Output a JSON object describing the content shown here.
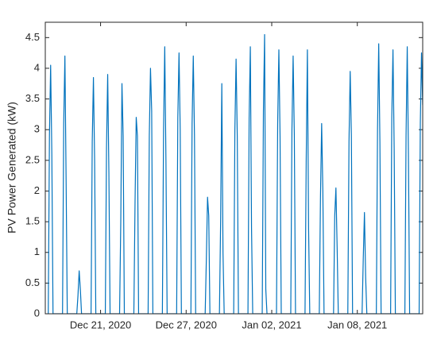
{
  "chart_data": {
    "type": "line",
    "y_label": "PV Power Generated (kW)",
    "x": [
      "2020-12-17 08:00",
      "2020-12-17 10:00",
      "2020-12-17 12:00",
      "2020-12-17 14:00",
      "2020-12-17 16:00",
      "2020-12-18 08:00",
      "2020-12-18 10:00",
      "2020-12-18 12:00",
      "2020-12-18 14:00",
      "2020-12-18 16:00",
      "2020-12-19 08:00",
      "2020-12-19 10:00",
      "2020-12-19 12:00",
      "2020-12-19 14:00",
      "2020-12-19 16:00",
      "2020-12-20 08:00",
      "2020-12-20 10:00",
      "2020-12-20 12:00",
      "2020-12-20 14:00",
      "2020-12-20 16:00",
      "2020-12-21 08:00",
      "2020-12-21 10:00",
      "2020-12-21 12:00",
      "2020-12-21 14:00",
      "2020-12-21 16:00",
      "2020-12-22 08:00",
      "2020-12-22 10:00",
      "2020-12-22 12:00",
      "2020-12-22 14:00",
      "2020-12-22 16:00",
      "2020-12-23 08:00",
      "2020-12-23 10:00",
      "2020-12-23 12:00",
      "2020-12-23 14:00",
      "2020-12-23 16:00",
      "2020-12-24 08:00",
      "2020-12-24 10:00",
      "2020-12-24 12:00",
      "2020-12-24 14:00",
      "2020-12-24 16:00",
      "2020-12-25 08:00",
      "2020-12-25 10:00",
      "2020-12-25 12:00",
      "2020-12-25 14:00",
      "2020-12-25 16:00",
      "2020-12-26 08:00",
      "2020-12-26 10:00",
      "2020-12-26 12:00",
      "2020-12-26 14:00",
      "2020-12-26 16:00",
      "2020-12-27 08:00",
      "2020-12-27 10:00",
      "2020-12-27 12:00",
      "2020-12-27 14:00",
      "2020-12-27 16:00",
      "2020-12-28 08:00",
      "2020-12-28 10:00",
      "2020-12-28 12:00",
      "2020-12-28 14:00",
      "2020-12-28 16:00",
      "2020-12-29 08:00",
      "2020-12-29 10:00",
      "2020-12-29 12:00",
      "2020-12-29 14:00",
      "2020-12-29 16:00",
      "2020-12-30 08:00",
      "2020-12-30 10:00",
      "2020-12-30 12:00",
      "2020-12-30 14:00",
      "2020-12-30 16:00",
      "2020-12-31 08:00",
      "2020-12-31 10:00",
      "2020-12-31 12:00",
      "2020-12-31 14:00",
      "2020-12-31 16:00",
      "2021-01-01 08:00",
      "2021-01-01 10:00",
      "2021-01-01 12:00",
      "2021-01-01 14:00",
      "2021-01-01 16:00",
      "2021-01-02 08:00",
      "2021-01-02 10:00",
      "2021-01-02 12:00",
      "2021-01-02 14:00",
      "2021-01-02 16:00",
      "2021-01-03 08:00",
      "2021-01-03 10:00",
      "2021-01-03 12:00",
      "2021-01-03 14:00",
      "2021-01-03 16:00",
      "2021-01-04 08:00",
      "2021-01-04 10:00",
      "2021-01-04 12:00",
      "2021-01-04 14:00",
      "2021-01-04 16:00",
      "2021-01-05 08:00",
      "2021-01-05 10:00",
      "2021-01-05 12:00",
      "2021-01-05 14:00",
      "2021-01-05 16:00",
      "2021-01-06 08:00",
      "2021-01-06 10:00",
      "2021-01-06 12:00",
      "2021-01-06 14:00",
      "2021-01-06 16:00",
      "2021-01-07 08:00",
      "2021-01-07 10:00",
      "2021-01-07 12:00",
      "2021-01-07 14:00",
      "2021-01-07 16:00",
      "2021-01-08 08:00",
      "2021-01-08 10:00",
      "2021-01-08 12:00",
      "2021-01-08 14:00",
      "2021-01-08 16:00",
      "2021-01-09 08:00",
      "2021-01-09 10:00",
      "2021-01-09 12:00",
      "2021-01-09 14:00",
      "2021-01-09 16:00",
      "2021-01-10 08:00",
      "2021-01-10 10:00",
      "2021-01-10 12:00",
      "2021-01-10 14:00",
      "2021-01-10 16:00",
      "2021-01-11 08:00",
      "2021-01-11 10:00",
      "2021-01-11 12:00",
      "2021-01-11 14:00",
      "2021-01-11 16:00",
      "2021-01-12 08:00",
      "2021-01-12 10:00",
      "2021-01-12 12:00",
      "2021-01-12 14:00"
    ],
    "series": [
      {
        "color": "#0072bd",
        "values": [
          0,
          2.9,
          4.05,
          2.6,
          0,
          0,
          3.1,
          4.2,
          2.2,
          0,
          0,
          0.3,
          0.7,
          0.4,
          0,
          0,
          2.8,
          3.85,
          2.5,
          0,
          0,
          2.7,
          3.9,
          2.3,
          0,
          0,
          1.5,
          3.75,
          2.9,
          0,
          0,
          1.8,
          3.2,
          2.9,
          0,
          0,
          2.9,
          4.0,
          3.3,
          0,
          0,
          3.0,
          4.35,
          2.5,
          0,
          0,
          3.2,
          4.25,
          3.0,
          0,
          0,
          3.1,
          4.2,
          2.9,
          0,
          0,
          0.9,
          1.9,
          1.6,
          0,
          0,
          1.5,
          3.75,
          1.0,
          0,
          0,
          3.0,
          4.15,
          2.9,
          0,
          0,
          3.2,
          4.35,
          1.4,
          0,
          0,
          3.3,
          4.55,
          0.4,
          0,
          0,
          3.1,
          4.3,
          2.9,
          0,
          0,
          3.0,
          4.2,
          2.9,
          0,
          0,
          2.5,
          4.3,
          1.4,
          0,
          0,
          1.9,
          3.1,
          2.0,
          0,
          0,
          1.6,
          2.05,
          1.1,
          0,
          0,
          2.8,
          3.95,
          2.9,
          0,
          0,
          0.9,
          1.65,
          0.6,
          0,
          0,
          3.0,
          4.4,
          2.8,
          0,
          0,
          3.2,
          4.3,
          2.7,
          0,
          0,
          2.9,
          4.35,
          2.6,
          0,
          0,
          3.1,
          4.25,
          3.4
        ]
      }
    ],
    "xlim": [
      "2020-12-17 03:00",
      "2021-01-12 14:00"
    ],
    "xticks": [
      {
        "value": "2020-12-21",
        "label": "Dec 21, 2020"
      },
      {
        "value": "2020-12-27",
        "label": "Dec 27, 2020"
      },
      {
        "value": "2021-01-02",
        "label": "Jan 02, 2021"
      },
      {
        "value": "2021-01-08",
        "label": "Jan 08, 2021"
      }
    ],
    "ylim": [
      0,
      4.75
    ],
    "yticks": [
      0,
      0.5,
      1,
      1.5,
      2,
      2.5,
      3,
      3.5,
      4,
      4.5
    ],
    "grid": false
  }
}
